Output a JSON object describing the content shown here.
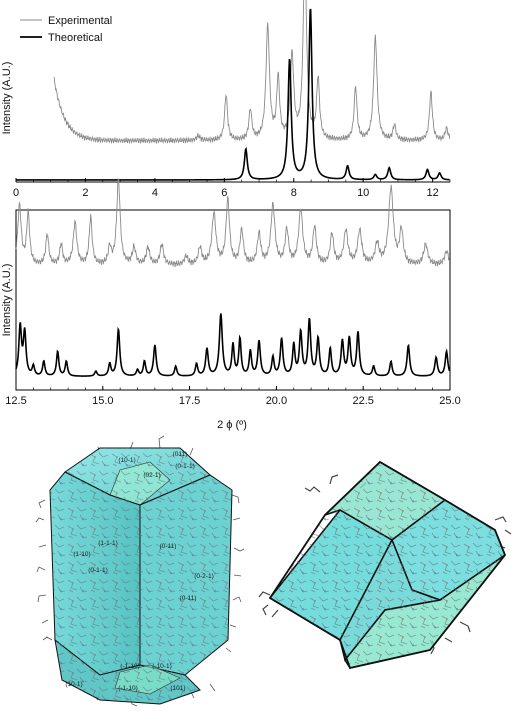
{
  "chart_data": [
    {
      "type": "line",
      "panel": "top",
      "xlabel": "",
      "ylabel": "Intensity (A.U.)",
      "xlim": [
        0,
        12.5
      ],
      "ylim": [
        0,
        1
      ],
      "x_ticks": [
        "0",
        "2",
        "4",
        "6",
        "8",
        "10",
        "12"
      ],
      "legend": {
        "position": "top-left",
        "entries": [
          "Experimental",
          "Theoretical"
        ]
      },
      "series": [
        {
          "name": "Experimental",
          "color": "#8a8a8a",
          "baseline": 0.14,
          "low_angle_rise": {
            "start": 1.1,
            "amplitude": 0.4,
            "decay": 0.3
          },
          "peaks": [
            [
              5.25,
              0.03,
              0.06
            ],
            [
              6.05,
              0.3,
              0.05
            ],
            [
              6.75,
              0.2,
              0.05
            ],
            [
              7.25,
              0.75,
              0.06
            ],
            [
              7.55,
              0.4,
              0.05
            ],
            [
              7.95,
              0.55,
              0.06
            ],
            [
              8.32,
              1.2,
              0.06
            ],
            [
              8.7,
              0.4,
              0.05
            ],
            [
              9.78,
              0.35,
              0.05
            ],
            [
              10.35,
              0.68,
              0.06
            ],
            [
              10.9,
              0.1,
              0.05
            ],
            [
              11.95,
              0.32,
              0.05
            ],
            [
              12.4,
              0.08,
              0.05
            ]
          ]
        },
        {
          "name": "Theoretical",
          "color": "#000000",
          "baseline": 0.0,
          "peaks": [
            [
              6.62,
              0.18,
              0.05
            ],
            [
              7.88,
              0.7,
              0.055
            ],
            [
              8.48,
              1.0,
              0.055
            ],
            [
              9.55,
              0.08,
              0.05
            ],
            [
              10.35,
              0.03,
              0.05
            ],
            [
              10.75,
              0.07,
              0.05
            ],
            [
              11.85,
              0.06,
              0.05
            ],
            [
              12.2,
              0.04,
              0.05
            ]
          ]
        }
      ]
    },
    {
      "type": "line",
      "panel": "bottom",
      "xlabel": "2 ϕ (º)",
      "ylabel": "Intensity (A.U.)",
      "xlim": [
        12.5,
        25.0
      ],
      "ylim": [
        0,
        1
      ],
      "x_ticks": [
        "12.5",
        "15.0",
        "17.5",
        "20.0",
        "22.5",
        "25.0"
      ],
      "series": [
        {
          "name": "Experimental",
          "color": "#8a8a8a",
          "baseline": 0.38,
          "peaks": [
            [
              12.6,
              0.35,
              0.06
            ],
            [
              12.85,
              0.3,
              0.05
            ],
            [
              13.4,
              0.18,
              0.05
            ],
            [
              13.8,
              0.12,
              0.05
            ],
            [
              14.2,
              0.25,
              0.06
            ],
            [
              14.65,
              0.28,
              0.05
            ],
            [
              15.2,
              0.1,
              0.05
            ],
            [
              15.45,
              0.5,
              0.06
            ],
            [
              15.9,
              0.1,
              0.06
            ],
            [
              16.3,
              0.1,
              0.06
            ],
            [
              16.7,
              0.12,
              0.06
            ],
            [
              17.4,
              0.05,
              0.06
            ],
            [
              17.8,
              0.1,
              0.06
            ],
            [
              18.2,
              0.3,
              0.07
            ],
            [
              18.6,
              0.38,
              0.06
            ],
            [
              19.0,
              0.2,
              0.06
            ],
            [
              19.5,
              0.18,
              0.06
            ],
            [
              19.9,
              0.35,
              0.07
            ],
            [
              20.3,
              0.2,
              0.06
            ],
            [
              20.7,
              0.32,
              0.07
            ],
            [
              21.1,
              0.22,
              0.06
            ],
            [
              21.6,
              0.18,
              0.06
            ],
            [
              22.0,
              0.2,
              0.07
            ],
            [
              22.4,
              0.2,
              0.07
            ],
            [
              22.9,
              0.12,
              0.07
            ],
            [
              23.3,
              0.45,
              0.08
            ],
            [
              23.6,
              0.2,
              0.06
            ],
            [
              24.3,
              0.12,
              0.07
            ],
            [
              24.9,
              0.08,
              0.07
            ]
          ]
        },
        {
          "name": "Theoretical",
          "color": "#000000",
          "baseline": 0.06,
          "peaks": [
            [
              12.62,
              0.4,
              0.045
            ],
            [
              12.75,
              0.35,
              0.045
            ],
            [
              13.0,
              0.08,
              0.04
            ],
            [
              13.3,
              0.12,
              0.04
            ],
            [
              13.7,
              0.2,
              0.04
            ],
            [
              13.95,
              0.12,
              0.04
            ],
            [
              14.8,
              0.04,
              0.04
            ],
            [
              15.2,
              0.1,
              0.04
            ],
            [
              15.45,
              0.38,
              0.045
            ],
            [
              16.0,
              0.05,
              0.04
            ],
            [
              16.2,
              0.12,
              0.04
            ],
            [
              16.5,
              0.25,
              0.045
            ],
            [
              17.1,
              0.08,
              0.04
            ],
            [
              17.7,
              0.1,
              0.04
            ],
            [
              18.0,
              0.22,
              0.045
            ],
            [
              18.4,
              0.5,
              0.05
            ],
            [
              18.75,
              0.25,
              0.04
            ],
            [
              18.95,
              0.3,
              0.04
            ],
            [
              19.25,
              0.2,
              0.04
            ],
            [
              19.5,
              0.28,
              0.045
            ],
            [
              19.9,
              0.15,
              0.04
            ],
            [
              20.15,
              0.3,
              0.045
            ],
            [
              20.5,
              0.25,
              0.04
            ],
            [
              20.7,
              0.35,
              0.045
            ],
            [
              20.95,
              0.45,
              0.045
            ],
            [
              21.2,
              0.3,
              0.045
            ],
            [
              21.55,
              0.22,
              0.04
            ],
            [
              21.9,
              0.28,
              0.045
            ],
            [
              22.1,
              0.3,
              0.045
            ],
            [
              22.35,
              0.35,
              0.045
            ],
            [
              22.8,
              0.08,
              0.04
            ],
            [
              23.3,
              0.12,
              0.04
            ],
            [
              23.8,
              0.25,
              0.045
            ],
            [
              24.6,
              0.15,
              0.045
            ],
            [
              24.9,
              0.2,
              0.045
            ]
          ]
        }
      ]
    }
  ],
  "crystal_habit_left": {
    "face_color": "#5fd0d0",
    "face_labels": [
      "(10-1)",
      "(011)",
      "(0-1-1)",
      "(02-1)",
      "(1-10)",
      "(1-1-1)",
      "(0-1-1)",
      "(0-11)",
      "(0-2-1)",
      "(0-11)",
      "(-1-10)",
      "(-10-1)",
      "(101)",
      "(-1-10)",
      "(10-1)"
    ]
  },
  "crystal_habit_right": {
    "face_color": "#6fdcdc"
  }
}
